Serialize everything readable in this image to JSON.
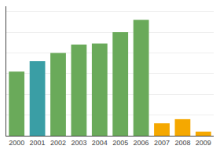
{
  "chart_data": {
    "type": "bar",
    "categories": [
      "2000",
      "2001",
      "2002",
      "2003",
      "2004",
      "2005",
      "2006",
      "2007",
      "2008",
      "2009"
    ],
    "values": [
      62,
      72,
      80,
      88,
      89,
      100,
      112,
      12,
      16,
      4
    ],
    "colors": [
      "#6aaa5a",
      "#3a9ea5",
      "#6aaa5a",
      "#6aaa5a",
      "#6aaa5a",
      "#6aaa5a",
      "#6aaa5a",
      "#f5a800",
      "#f5a800",
      "#f5a800"
    ],
    "ylim": [
      0,
      125
    ],
    "yticks": [
      20,
      40,
      60,
      80,
      100,
      120
    ],
    "grid": true,
    "tick_labels": "x"
  }
}
